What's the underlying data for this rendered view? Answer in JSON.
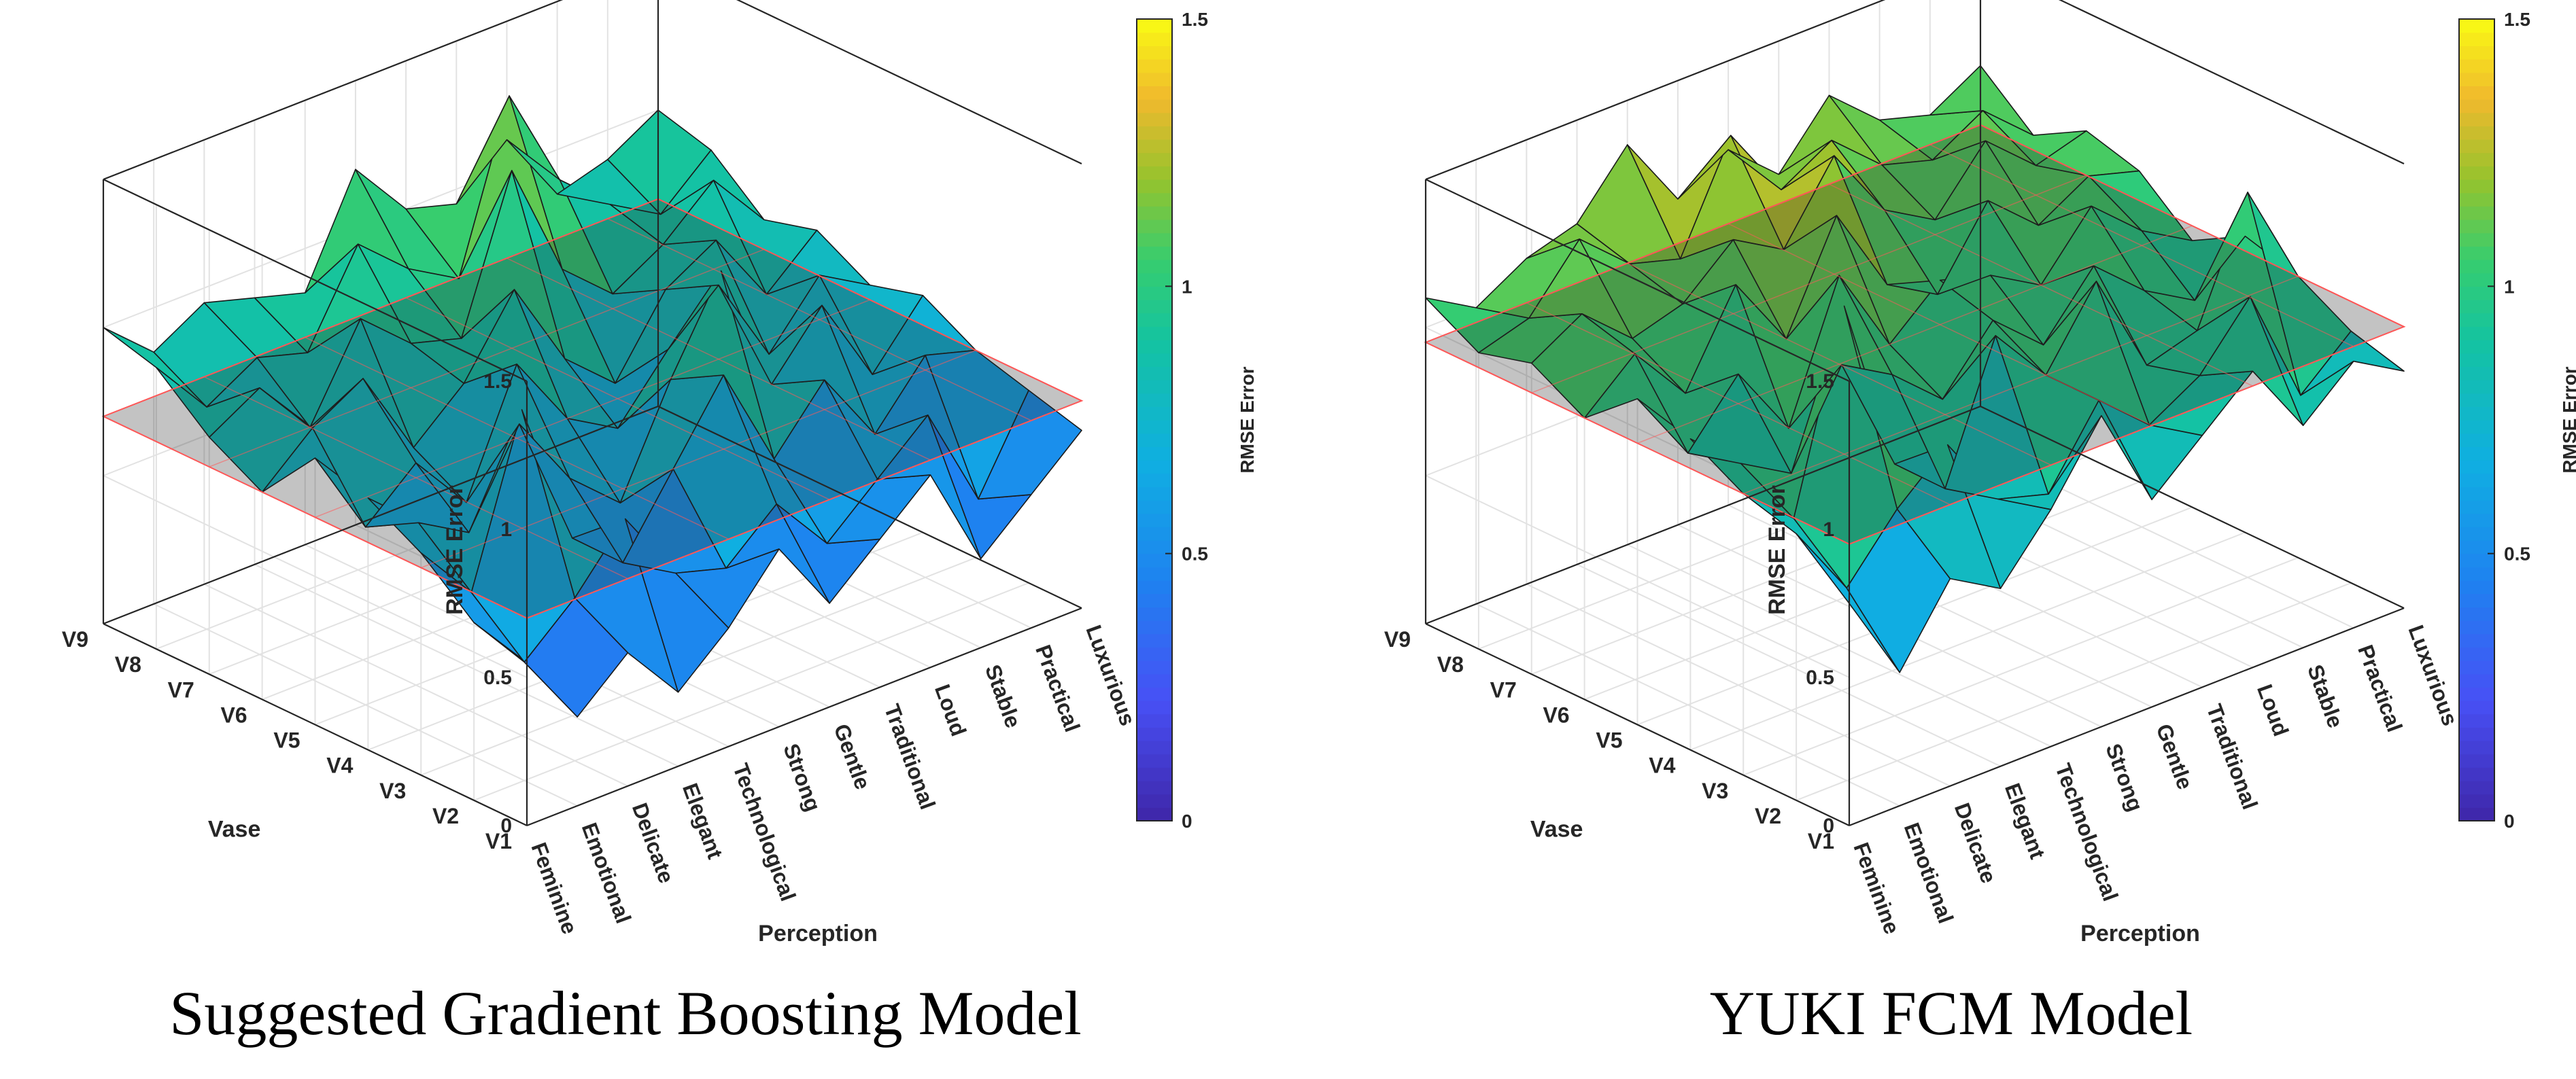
{
  "chart_data": [
    {
      "type": "surface3d",
      "title": "Suggested Gradient Boosting Model",
      "xlabel": "Perception",
      "ylabel": "Vase",
      "zlabel": "RMSE Error",
      "colorbar_label": "RMSE Error",
      "colorbar_ticks": [
        "0",
        "0.5",
        "1",
        "1.5"
      ],
      "zticks": [
        "0",
        "0.5",
        "1",
        "1.5"
      ],
      "zlim": [
        0,
        1.5
      ],
      "clim": [
        0,
        1.5
      ],
      "x_categories": [
        "Feminine",
        "Emotional",
        "Delicate",
        "Elegant",
        "Technological",
        "Strong",
        "Gentle",
        "Traditional",
        "Loud",
        "Stable",
        "Practical",
        "Luxurious"
      ],
      "y_categories": [
        "V1",
        "V2",
        "V3",
        "V4",
        "V5",
        "V6",
        "V7",
        "V8",
        "V9"
      ],
      "reference_plane": 0.7,
      "z": [
        [
          0.55,
          0.3,
          0.45,
          0.25,
          0.4,
          0.6,
          0.35,
          0.5,
          0.65,
          0.3,
          0.45,
          0.6
        ],
        [
          0.6,
          0.4,
          0.55,
          0.75,
          0.5,
          0.45,
          0.6,
          0.4,
          0.55,
          0.7,
          0.35,
          0.65
        ],
        [
          0.75,
          0.55,
          1.1,
          0.6,
          0.45,
          0.7,
          0.95,
          0.6,
          0.8,
          0.55,
          0.75,
          0.7
        ],
        [
          0.85,
          0.7,
          0.6,
          0.9,
          0.65,
          0.5,
          0.85,
          1.15,
          0.7,
          0.9,
          0.6,
          0.8
        ],
        [
          0.9,
          0.6,
          0.75,
          0.55,
          0.95,
          0.7,
          0.6,
          0.8,
          0.95,
          0.65,
          0.85,
          0.75
        ],
        [
          0.7,
          0.85,
          0.95,
          0.65,
          0.8,
          1.05,
          0.75,
          0.6,
          0.85,
          0.95,
          0.7,
          0.85
        ],
        [
          0.8,
          0.9,
          0.7,
          1.0,
          0.85,
          0.8,
          1.3,
          0.9,
          0.75,
          0.85,
          1.0,
          0.8
        ],
        [
          0.95,
          0.75,
          0.85,
          0.8,
          1.1,
          0.95,
          0.85,
          1.4,
          1.05,
          0.9,
          0.8,
          0.95
        ],
        [
          1.0,
          0.85,
          0.95,
          0.9,
          0.85,
          1.2,
          1.0,
          0.95,
          1.1,
          0.85,
          0.9,
          1.0
        ]
      ]
    },
    {
      "type": "surface3d",
      "title": "YUKI FCM Model",
      "xlabel": "Perception",
      "ylabel": "Vase",
      "zlabel": "RMSE Error",
      "colorbar_label": "RMSE Error",
      "colorbar_ticks": [
        "0",
        "0.5",
        "1",
        "1.5"
      ],
      "zticks": [
        "0",
        "0.5",
        "1",
        "1.5"
      ],
      "zlim": [
        0,
        1.5
      ],
      "clim": [
        0,
        1.5
      ],
      "x_categories": [
        "Feminine",
        "Emotional",
        "Delicate",
        "Elegant",
        "Technological",
        "Strong",
        "Gentle",
        "Traditional",
        "Loud",
        "Stable",
        "Practical",
        "Luxurious"
      ],
      "y_categories": [
        "V1",
        "V2",
        "V3",
        "V4",
        "V5",
        "V6",
        "V7",
        "V8",
        "V9"
      ],
      "reference_plane": 0.95,
      "z": [
        [
          0.75,
          0.45,
          0.7,
          0.6,
          0.8,
          1.05,
          0.7,
          0.85,
          1.0,
          0.75,
          0.9,
          0.8
        ],
        [
          0.9,
          0.65,
          0.85,
          1.0,
          0.75,
          0.7,
          0.95,
          0.8,
          0.9,
          1.1,
          0.7,
          0.85
        ],
        [
          0.95,
          0.8,
          1.45,
          0.85,
          0.7,
          1.15,
          0.95,
          1.2,
          0.85,
          0.9,
          1.3,
          0.95
        ],
        [
          1.05,
          0.9,
          0.8,
          1.1,
          1.0,
          0.85,
          1.05,
          0.9,
          1.1,
          0.95,
          0.85,
          1.0
        ],
        [
          1.1,
          0.85,
          1.05,
          0.8,
          1.25,
          0.95,
          1.1,
          1.05,
          0.95,
          1.15,
          1.0,
          0.9
        ],
        [
          0.95,
          1.1,
          0.9,
          1.2,
          0.95,
          1.3,
          1.0,
          0.9,
          1.15,
          1.0,
          1.1,
          1.05
        ],
        [
          1.05,
          1.15,
          1.0,
          1.05,
          1.2,
          1.1,
          1.35,
          1.1,
          1.0,
          1.2,
          1.05,
          1.1
        ],
        [
          1.0,
          1.05,
          1.25,
          1.1,
          1.05,
          1.4,
          1.15,
          1.25,
          1.1,
          1.05,
          1.15,
          1.0
        ],
        [
          1.1,
          1.0,
          1.1,
          1.15,
          1.35,
          1.1,
          1.2,
          1.05,
          1.25,
          1.1,
          1.05,
          1.15
        ]
      ]
    }
  ]
}
